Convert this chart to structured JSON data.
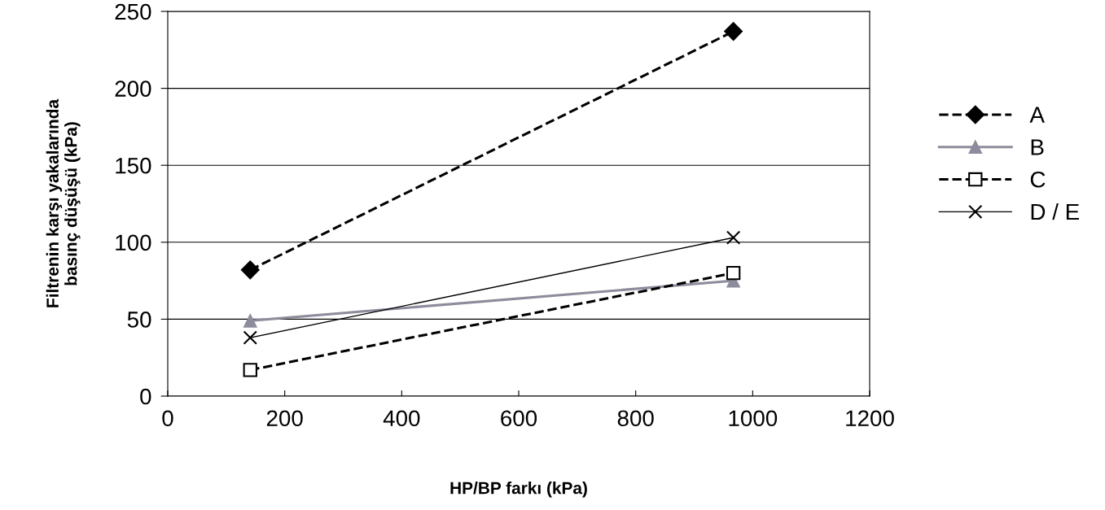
{
  "chart_data": {
    "type": "line",
    "xlabel": "HP/BP farkı (kPa)",
    "ylabel": "Filtrenin karşı yakalarında\nbasınç düşüşü (kPa)",
    "xlim": [
      0,
      1200
    ],
    "xticks": [
      0,
      200,
      400,
      600,
      800,
      1000,
      1200
    ],
    "ylim": [
      0,
      250
    ],
    "yticks": [
      0,
      50,
      100,
      150,
      200,
      250
    ],
    "grid": "y",
    "legend": "right",
    "x": [
      141,
      967
    ],
    "series": [
      {
        "name": "A",
        "color": "#000000",
        "marker": "diamond",
        "line_style": "dashed",
        "values": [
          82,
          237
        ]
      },
      {
        "name": "B",
        "color": "#8c8c9c",
        "marker": "triangle",
        "line_style": "solid",
        "values": [
          49,
          75
        ]
      },
      {
        "name": "C",
        "color": "#000000",
        "marker": "square",
        "line_style": "dashed",
        "values": [
          17,
          80
        ]
      },
      {
        "name": "D / E",
        "color": "#000000",
        "marker": "cross",
        "line_style": "solid",
        "values": [
          38,
          103
        ]
      }
    ]
  }
}
